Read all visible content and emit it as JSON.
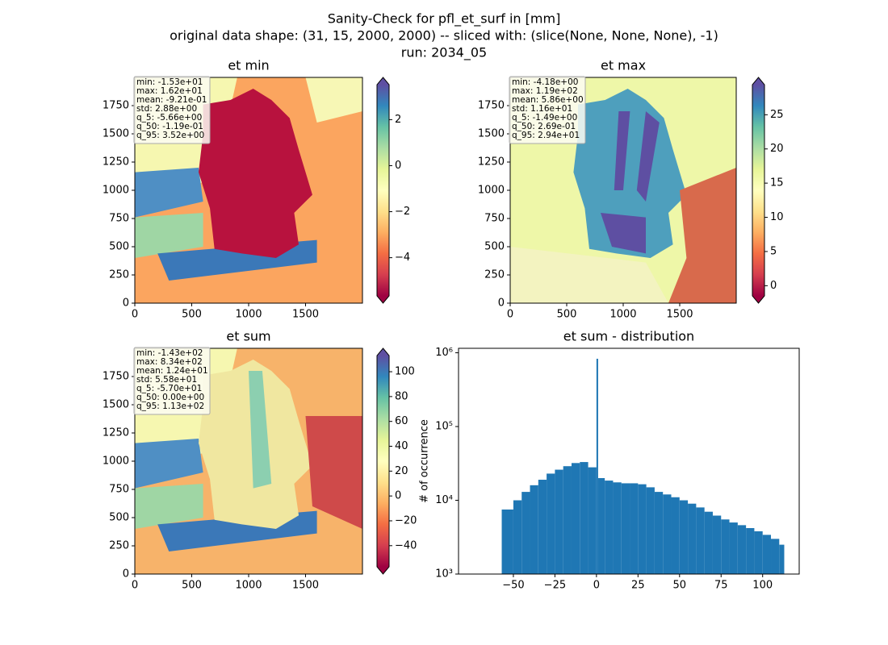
{
  "title": [
    "Sanity-Check for pfl_et_surf in [mm]",
    "original data shape: (31, 15, 2000, 2000) -- sliced with: (slice(None, None, None), -1)",
    "run: 2034_05"
  ],
  "chart_data": [
    {
      "type": "heatmap",
      "title": "et min",
      "xlim": [
        0,
        2000
      ],
      "ylim": [
        0,
        2000
      ],
      "xticks": [
        0,
        500,
        1000,
        1500
      ],
      "yticks": [
        0,
        250,
        500,
        750,
        1000,
        1250,
        1500,
        1750
      ],
      "stats": [
        "min: -1.53e+01",
        "max: 1.62e+01",
        "mean: -9.21e-01",
        "std: 2.88e+00",
        "q_5: -5.66e+00",
        "q_50: -1.19e-01",
        "q_95: 3.52e+00"
      ],
      "cmap": "Spectral",
      "clim": [
        -5.66,
        3.52
      ],
      "cticks": [
        2,
        0,
        {
          "value": -2,
          "label": "−2"
        },
        {
          "value": -4,
          "label": "−4"
        }
      ]
    },
    {
      "type": "heatmap",
      "title": "et max",
      "xlim": [
        0,
        2000
      ],
      "ylim": [
        0,
        2000
      ],
      "xticks": [
        0,
        500,
        1000,
        1500
      ],
      "yticks": [
        0,
        250,
        500,
        750,
        1000,
        1250,
        1500,
        1750
      ],
      "stats": [
        "min: -4.18e+00",
        "max: 1.19e+02",
        "mean: 5.86e+00",
        "std: 1.16e+01",
        "q_5: -1.49e+00",
        "q_50: 2.69e-01",
        "q_95: 2.94e+01"
      ],
      "cmap": "Spectral",
      "clim": [
        -1.49,
        29.4
      ],
      "cticks": [
        0,
        5,
        10,
        15,
        20,
        25
      ]
    },
    {
      "type": "heatmap",
      "title": "et sum",
      "xlim": [
        0,
        2000
      ],
      "ylim": [
        0,
        2000
      ],
      "xticks": [
        0,
        500,
        1000,
        1500
      ],
      "yticks": [
        0,
        250,
        500,
        750,
        1000,
        1250,
        1500,
        1750
      ],
      "stats": [
        "min: -1.43e+02",
        "max: 8.34e+02",
        "mean: 1.24e+01",
        "std: 5.58e+01",
        "q_5: -5.70e+01",
        "q_50: 0.00e+00",
        "q_95: 1.13e+02"
      ],
      "cmap": "Spectral",
      "clim": [
        -57,
        113
      ],
      "cticks": [
        {
          "value": -40,
          "label": "−40"
        },
        {
          "value": -20,
          "label": "−20"
        },
        0,
        20,
        40,
        60,
        80,
        100
      ]
    },
    {
      "type": "histogram",
      "title": "et sum - distribution",
      "ylabel": "# of occurrence",
      "color": "#1f77b4",
      "yscale": "log",
      "bins": [
        -57,
        -50,
        -45,
        -40,
        -35,
        -30,
        -25,
        -20,
        -15,
        -10,
        -5,
        0,
        1,
        5,
        10,
        15,
        20,
        25,
        30,
        35,
        40,
        45,
        50,
        55,
        60,
        65,
        70,
        75,
        80,
        85,
        90,
        95,
        100,
        105,
        110,
        113
      ],
      "counts": [
        7500,
        10000,
        13000,
        16000,
        19000,
        23000,
        26000,
        29000,
        32000,
        33000,
        28000,
        830000,
        20000,
        18500,
        17500,
        17000,
        17000,
        16500,
        15000,
        13000,
        12000,
        11000,
        10000,
        9000,
        8000,
        7000,
        6200,
        5500,
        5000,
        4600,
        4200,
        3800,
        3400,
        3000,
        2500
      ],
      "xlim": [
        -83,
        122
      ],
      "ylim": [
        1000,
        1150000
      ],
      "xticks": [
        {
          "value": -50,
          "label": "−50"
        },
        {
          "value": -25,
          "label": "−25"
        },
        0,
        25,
        50,
        75,
        100
      ],
      "yticks": [
        {
          "value": 1000,
          "label": "10³"
        },
        {
          "value": 10000,
          "label": "10⁴"
        },
        {
          "value": 100000,
          "label": "10⁵"
        },
        {
          "value": 1000000,
          "label": "10⁶"
        }
      ]
    }
  ]
}
